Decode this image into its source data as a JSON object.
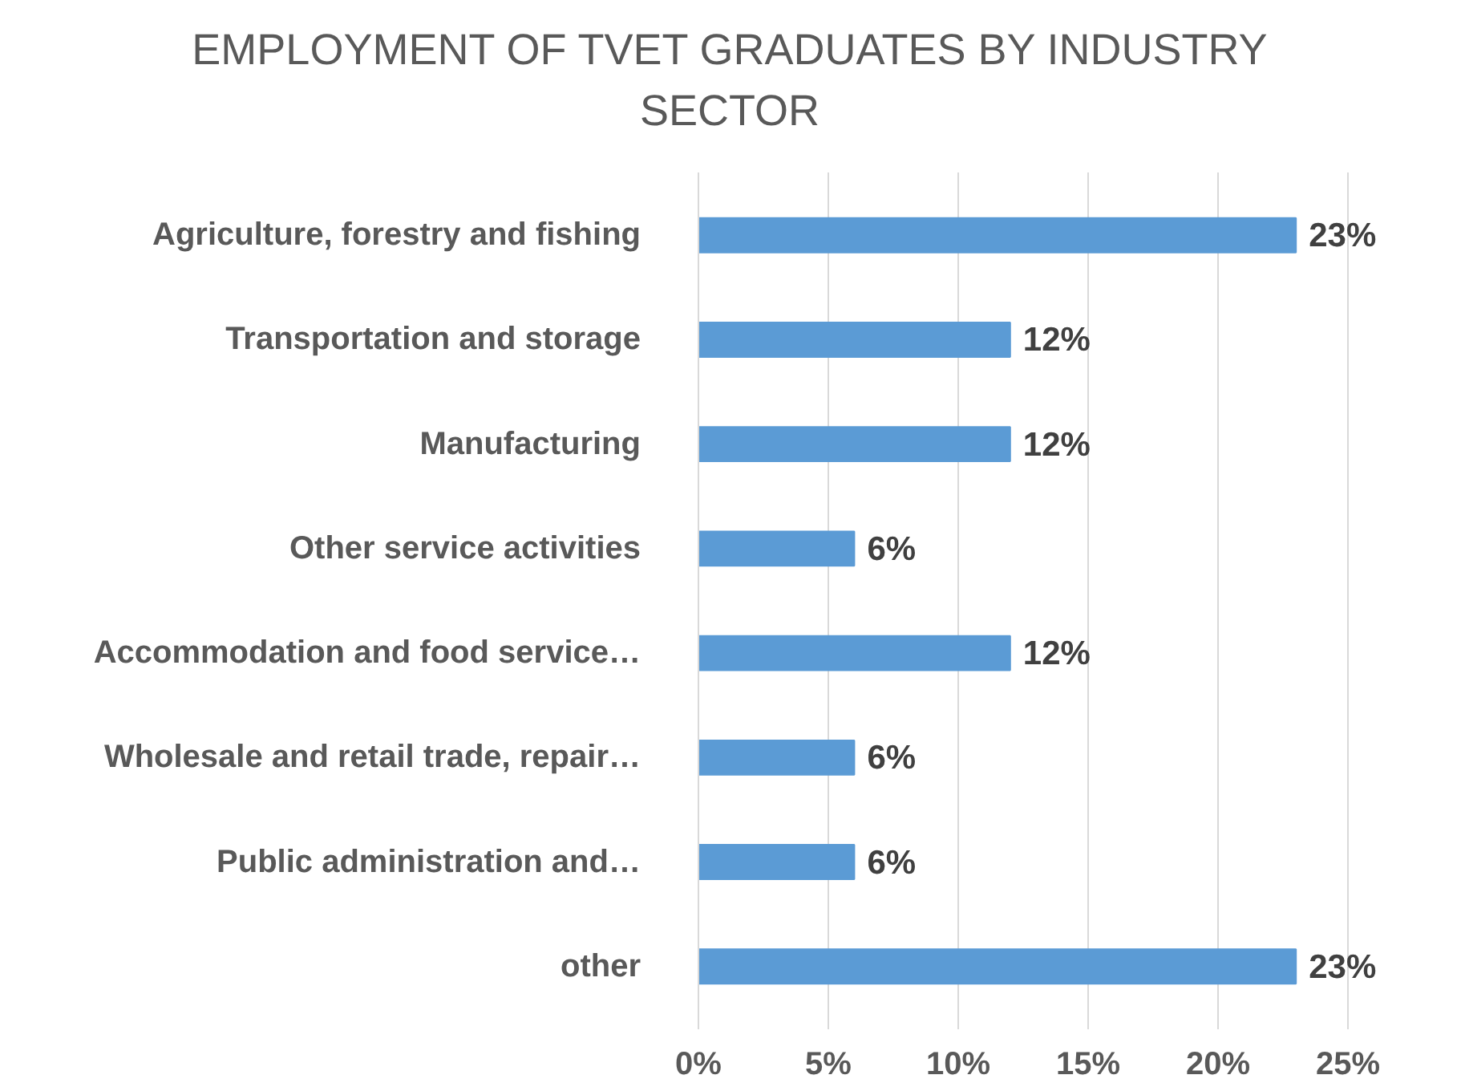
{
  "chart_data": {
    "type": "bar",
    "orientation": "horizontal",
    "title": "EMPLOYMENT OF TVET GRADUATES BY INDUSTRY SECTOR",
    "categories": [
      "Agriculture, forestry and fishing",
      "Transportation and storage",
      "Manufacturing",
      "Other service activities",
      "Accommodation and food service…",
      "Wholesale and retail trade, repair…",
      "Public administration and…",
      "other"
    ],
    "values": [
      23,
      12,
      12,
      6,
      12,
      6,
      6,
      23
    ],
    "value_labels": [
      "23%",
      "12%",
      "12%",
      "6%",
      "12%",
      "6%",
      "6%",
      "23%"
    ],
    "color": "#5b9bd5",
    "xlim": [
      0,
      25
    ],
    "xticks": [
      {
        "value": 0,
        "label": "0%"
      },
      {
        "value": 5,
        "label": "5%"
      },
      {
        "value": 10,
        "label": "10%"
      },
      {
        "value": 15,
        "label": "15%"
      },
      {
        "value": 20,
        "label": "20%"
      },
      {
        "value": 25,
        "label": "25%"
      }
    ],
    "grid": "x"
  }
}
